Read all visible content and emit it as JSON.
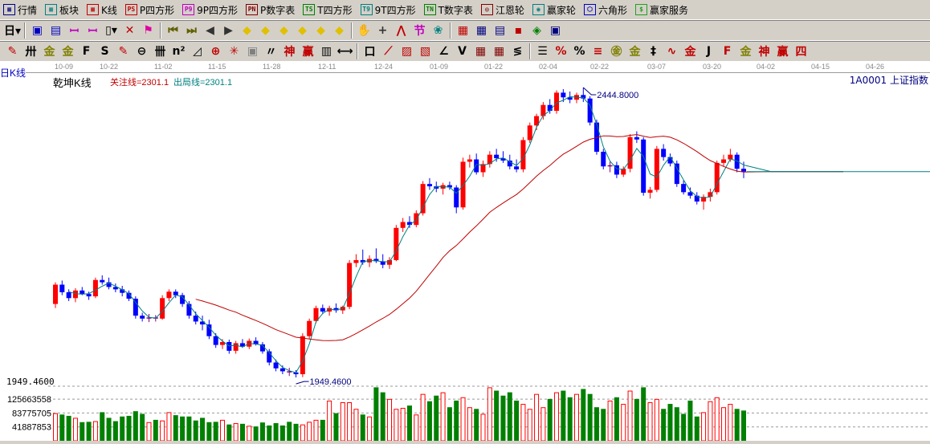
{
  "menu": [
    {
      "icon": "quote-table-icon",
      "label": "行情",
      "color": "#000080"
    },
    {
      "icon": "sector-grid-icon",
      "label": "板块",
      "color": "#008080"
    },
    {
      "icon": "kline-icon",
      "label": "K线",
      "color": "#c00000"
    },
    {
      "icon": "ps-icon",
      "glyph": "PS",
      "label": "P四方形",
      "color": "#c00000"
    },
    {
      "icon": "p9-icon",
      "glyph": "P9",
      "label": "9P四方形",
      "color": "#c000c0"
    },
    {
      "icon": "pn-icon",
      "glyph": "PN",
      "label": "P数字表",
      "color": "#800000"
    },
    {
      "icon": "ts-icon",
      "glyph": "TS",
      "label": "T四方形",
      "color": "#008000"
    },
    {
      "icon": "t9-icon",
      "glyph": "T9",
      "label": "9T四方形",
      "color": "#008080"
    },
    {
      "icon": "tn-icon",
      "glyph": "TN",
      "label": "T数字表",
      "color": "#008000"
    },
    {
      "icon": "gann-wheel-icon",
      "glyph": "◎",
      "label": "江恩轮",
      "color": "#800000"
    },
    {
      "icon": "winner-wheel-icon",
      "glyph": "◉",
      "label": "赢家轮",
      "color": "#008080"
    },
    {
      "icon": "hexagon-icon",
      "glyph": "⬡",
      "label": "六角形",
      "color": "#0000c0"
    },
    {
      "icon": "dollar-icon",
      "glyph": "$",
      "label": "赢家服务",
      "color": "#20a020"
    }
  ],
  "toolbar2": [
    {
      "icon": "period-day-icon",
      "glyph": "日▾",
      "color": "#000"
    },
    {
      "sep": true
    },
    {
      "icon": "window-icon",
      "glyph": "▣",
      "color": "#0000c0"
    },
    {
      "icon": "notes-icon",
      "glyph": "▤",
      "color": "#0000c0"
    },
    {
      "icon": "bars3-icon",
      "glyph": "ꟷ",
      "color": "#c000c0"
    },
    {
      "icon": "bars9-icon",
      "glyph": "ꟷ",
      "color": "#c000c0"
    },
    {
      "icon": "candle-type-icon",
      "glyph": "▯▾",
      "color": "#000"
    },
    {
      "icon": "indicator-icon",
      "glyph": "✕",
      "color": "#c00000"
    },
    {
      "icon": "flag-icon",
      "glyph": "⚑",
      "color": "#e000a0"
    },
    {
      "sep": true
    },
    {
      "icon": "first-icon",
      "glyph": "⏮",
      "color": "#606000"
    },
    {
      "icon": "last-icon",
      "glyph": "⏭",
      "color": "#606000"
    },
    {
      "icon": "prev-icon",
      "glyph": "◀",
      "color": "#333"
    },
    {
      "icon": "next-icon",
      "glyph": "▶",
      "color": "#333"
    },
    {
      "icon": "zoom-left-icon",
      "glyph": "◆",
      "color": "#e0c000"
    },
    {
      "icon": "zoom-right-icon",
      "glyph": "◆",
      "color": "#e0c000"
    },
    {
      "icon": "zoom-h-icon",
      "glyph": "◆",
      "color": "#e0c000"
    },
    {
      "icon": "zoom-in-icon",
      "glyph": "◆",
      "color": "#e0c000"
    },
    {
      "icon": "zoom-out-icon",
      "glyph": "◆",
      "color": "#e0c000"
    },
    {
      "icon": "zoom-v-icon",
      "glyph": "◆",
      "color": "#e0c000"
    },
    {
      "sep": true
    },
    {
      "icon": "hand-icon",
      "glyph": "✋",
      "color": "#333"
    },
    {
      "icon": "crosshair-icon",
      "glyph": "+",
      "color": "#333"
    },
    {
      "icon": "draw-line-icon",
      "glyph": "⋀",
      "color": "#c00000"
    },
    {
      "icon": "festival-icon",
      "glyph": "节",
      "color": "#c000c0"
    },
    {
      "icon": "cycle-icon",
      "glyph": "❀",
      "color": "#008080"
    },
    {
      "sep": true
    },
    {
      "icon": "calendar-icon",
      "glyph": "▦",
      "color": "#c00000"
    },
    {
      "icon": "calculator-icon",
      "glyph": "▦",
      "color": "#000080"
    },
    {
      "icon": "report-icon",
      "glyph": "▤",
      "color": "#000080"
    },
    {
      "icon": "save-icon",
      "glyph": "▪",
      "color": "#c00000"
    },
    {
      "icon": "network-icon",
      "glyph": "◈",
      "color": "#008000"
    },
    {
      "icon": "print-icon",
      "glyph": "▣",
      "color": "#000080"
    }
  ],
  "toolbar3": [
    {
      "icon": "pencil-icon",
      "glyph": "✎",
      "color": "#c00000"
    },
    {
      "icon": "hash-icon",
      "glyph": "卅",
      "color": "#000"
    },
    {
      "icon": "gold-icon",
      "glyph": "金",
      "color": "#808000"
    },
    {
      "icon": "gold2-icon",
      "glyph": "金",
      "color": "#808000"
    },
    {
      "icon": "f-grid-icon",
      "glyph": "F",
      "color": "#000"
    },
    {
      "icon": "spiral-icon",
      "glyph": "S",
      "color": "#000"
    },
    {
      "icon": "pen-ruler-icon",
      "glyph": "✎",
      "color": "#c00000"
    },
    {
      "icon": "circle-ruler-icon",
      "glyph": "⊖",
      "color": "#000"
    },
    {
      "icon": "parallel-icon",
      "glyph": "卌",
      "color": "#000"
    },
    {
      "icon": "n2-icon",
      "glyph": "n²",
      "color": "#000"
    },
    {
      "icon": "triangle-icon",
      "glyph": "◿",
      "color": "#000"
    },
    {
      "icon": "target-icon",
      "glyph": "⊕",
      "color": "#c00000"
    },
    {
      "icon": "star-icon",
      "glyph": "✳",
      "color": "#c00000"
    },
    {
      "icon": "square-target-icon",
      "glyph": "▣",
      "color": "#808080"
    },
    {
      "icon": "quote-icon",
      "glyph": "〃",
      "color": "#000"
    },
    {
      "icon": "shen-icon",
      "glyph": "神",
      "color": "#c00000"
    },
    {
      "icon": "ying-icon",
      "glyph": "赢",
      "color": "#c00000"
    },
    {
      "icon": "ruler-icon",
      "glyph": "▥",
      "color": "#000"
    },
    {
      "icon": "width-icon",
      "glyph": "⟷",
      "color": "#000"
    },
    {
      "sep": true
    },
    {
      "icon": "box-icon",
      "glyph": "口",
      "color": "#000"
    },
    {
      "icon": "fan-icon",
      "glyph": "⟋",
      "color": "#c00000"
    },
    {
      "icon": "grid-fan-icon",
      "glyph": "▨",
      "color": "#c00000"
    },
    {
      "icon": "grid-fan2-icon",
      "glyph": "▧",
      "color": "#c00000"
    },
    {
      "icon": "angle-icon",
      "glyph": "∠",
      "color": "#000"
    },
    {
      "icon": "v-icon",
      "glyph": "V",
      "color": "#000"
    },
    {
      "icon": "grid-icon",
      "glyph": "▦",
      "color": "#800000"
    },
    {
      "icon": "grid2-icon",
      "glyph": "▦",
      "color": "#800000"
    },
    {
      "icon": "lines-icon",
      "glyph": "≶",
      "color": "#000"
    },
    {
      "sep": true
    },
    {
      "icon": "bars-icon",
      "glyph": "☰",
      "color": "#000"
    },
    {
      "icon": "percent-slash-icon",
      "glyph": "%",
      "color": "#c00000"
    },
    {
      "icon": "percent-icon",
      "glyph": "%",
      "color": "#000"
    },
    {
      "icon": "percent-lines-icon",
      "glyph": "≡",
      "color": "#c00000"
    },
    {
      "icon": "gold-circle-icon",
      "glyph": "㊎",
      "color": "#808000"
    },
    {
      "icon": "gold-lines-icon",
      "glyph": "金",
      "color": "#808000"
    },
    {
      "icon": "level-icon",
      "glyph": "‡",
      "color": "#000"
    },
    {
      "icon": "wave-icon",
      "glyph": "∿",
      "color": "#c00000"
    },
    {
      "icon": "gold-line-icon",
      "glyph": "金",
      "color": "#c00000"
    },
    {
      "icon": "j-angle-icon",
      "glyph": "J",
      "color": "#000"
    },
    {
      "icon": "f-angle-icon",
      "glyph": "F",
      "color": "#c00000"
    },
    {
      "icon": "gold-angle-icon",
      "glyph": "金",
      "color": "#808000"
    },
    {
      "icon": "shen-angle-icon",
      "glyph": "神",
      "color": "#c00000"
    },
    {
      "icon": "ying-angle-icon",
      "glyph": "赢",
      "color": "#c00000"
    },
    {
      "icon": "si-angle-icon",
      "glyph": "四",
      "color": "#c00000"
    }
  ],
  "axis_dates": [
    "10-09",
    "10-22",
    "11-02",
    "11-15",
    "11-28",
    "12-11",
    "12-24",
    "01-09",
    "01-22",
    "02-04",
    "02-22",
    "03-07",
    "03-20",
    "04-02",
    "04-15",
    "04-26"
  ],
  "header": {
    "period": "日K线",
    "indicator": "乾坤K线",
    "focus_line": "关注线=2301.1",
    "exit_line": "出局线=2301.1",
    "symbol": "1A0001 上证指数"
  },
  "colors": {
    "up": "#ff0000",
    "down": "#0000ff",
    "doji": "#800080",
    "vol_down": "#008000",
    "ma_short": "#008080",
    "ma_long": "#c00000",
    "focus": "#c00000",
    "exit": "#008080"
  },
  "chart_data": {
    "type": "candlestick",
    "high_label": "2444.8000",
    "low_label": "1949.4600",
    "price_axis_label": "1949.4600",
    "volume_ticks": [
      "125663558",
      "83775705",
      "41887853"
    ],
    "volume_tick_values": [
      125663558,
      83775705,
      41887853
    ],
    "candles_ohlc": [
      [
        2075,
        2112,
        2068,
        2108
      ],
      [
        2108,
        2115,
        2090,
        2095
      ],
      [
        2095,
        2100,
        2080,
        2085
      ],
      [
        2085,
        2102,
        2078,
        2098
      ],
      [
        2098,
        2104,
        2090,
        2092
      ],
      [
        2092,
        2096,
        2082,
        2088
      ],
      [
        2088,
        2120,
        2085,
        2116
      ],
      [
        2116,
        2124,
        2108,
        2112
      ],
      [
        2112,
        2120,
        2100,
        2104
      ],
      [
        2104,
        2110,
        2095,
        2100
      ],
      [
        2100,
        2106,
        2088,
        2094
      ],
      [
        2094,
        2098,
        2080,
        2084
      ],
      [
        2084,
        2088,
        2050,
        2055
      ],
      [
        2055,
        2060,
        2045,
        2050
      ],
      [
        2050,
        2058,
        2044,
        2052
      ],
      [
        2052,
        2056,
        2045,
        2050
      ],
      [
        2050,
        2090,
        2048,
        2085
      ],
      [
        2085,
        2100,
        2080,
        2096
      ],
      [
        2096,
        2100,
        2085,
        2090
      ],
      [
        2090,
        2094,
        2070,
        2075
      ],
      [
        2075,
        2080,
        2050,
        2055
      ],
      [
        2055,
        2062,
        2040,
        2045
      ],
      [
        2045,
        2055,
        2030,
        2040
      ],
      [
        2040,
        2048,
        2015,
        2020
      ],
      [
        2020,
        2025,
        2000,
        2005
      ],
      [
        2005,
        2015,
        1998,
        2010
      ],
      [
        2010,
        2014,
        1990,
        1995
      ],
      [
        1995,
        2012,
        1990,
        2008
      ],
      [
        2008,
        2015,
        2000,
        2002
      ],
      [
        2002,
        2016,
        1998,
        2012
      ],
      [
        2012,
        2018,
        2004,
        2006
      ],
      [
        2006,
        2010,
        1990,
        1994
      ],
      [
        1994,
        1998,
        1970,
        1975
      ],
      [
        1975,
        1980,
        1960,
        1965
      ],
      [
        1965,
        1970,
        1955,
        1960
      ],
      [
        1960,
        1966,
        1952,
        1958
      ],
      [
        1958,
        1962,
        1949.46,
        1955
      ],
      [
        1955,
        2025,
        1950,
        2020
      ],
      [
        2020,
        2050,
        2015,
        2046
      ],
      [
        2046,
        2072,
        2042,
        2068
      ],
      [
        2068,
        2074,
        2058,
        2062
      ],
      [
        2062,
        2072,
        2055,
        2068
      ],
      [
        2068,
        2076,
        2060,
        2064
      ],
      [
        2064,
        2072,
        2058,
        2070
      ],
      [
        2070,
        2150,
        2066,
        2145
      ],
      [
        2145,
        2160,
        2138,
        2150
      ],
      [
        2150,
        2168,
        2142,
        2146
      ],
      [
        2146,
        2158,
        2138,
        2152
      ],
      [
        2152,
        2170,
        2145,
        2148
      ],
      [
        2148,
        2160,
        2136,
        2142
      ],
      [
        2142,
        2155,
        2135,
        2150
      ],
      [
        2150,
        2210,
        2148,
        2205
      ],
      [
        2205,
        2222,
        2198,
        2215
      ],
      [
        2215,
        2225,
        2205,
        2210
      ],
      [
        2210,
        2235,
        2206,
        2230
      ],
      [
        2230,
        2285,
        2226,
        2280
      ],
      [
        2280,
        2290,
        2270,
        2276
      ],
      [
        2276,
        2284,
        2266,
        2272
      ],
      [
        2272,
        2282,
        2262,
        2278
      ],
      [
        2278,
        2284,
        2270,
        2274
      ],
      [
        2274,
        2278,
        2230,
        2240
      ],
      [
        2240,
        2325,
        2236,
        2318
      ],
      [
        2318,
        2330,
        2308,
        2322
      ],
      [
        2322,
        2332,
        2296,
        2300
      ],
      [
        2300,
        2320,
        2292,
        2314
      ],
      [
        2314,
        2336,
        2308,
        2330
      ],
      [
        2330,
        2340,
        2318,
        2324
      ],
      [
        2324,
        2336,
        2316,
        2320
      ],
      [
        2320,
        2330,
        2305,
        2310
      ],
      [
        2310,
        2322,
        2300,
        2305
      ],
      [
        2305,
        2360,
        2300,
        2355
      ],
      [
        2355,
        2385,
        2350,
        2380
      ],
      [
        2380,
        2400,
        2372,
        2396
      ],
      [
        2396,
        2420,
        2390,
        2415
      ],
      [
        2415,
        2425,
        2400,
        2405
      ],
      [
        2405,
        2440,
        2400,
        2436
      ],
      [
        2436,
        2442,
        2420,
        2428
      ],
      [
        2428,
        2438,
        2418,
        2424
      ],
      [
        2424,
        2436,
        2418,
        2432
      ],
      [
        2432,
        2444.8,
        2420,
        2426
      ],
      [
        2426,
        2430,
        2380,
        2385
      ],
      [
        2385,
        2390,
        2330,
        2335
      ],
      [
        2335,
        2340,
        2305,
        2310
      ],
      [
        2310,
        2318,
        2300,
        2312
      ],
      [
        2312,
        2318,
        2290,
        2296
      ],
      [
        2296,
        2310,
        2292,
        2306
      ],
      [
        2306,
        2365,
        2300,
        2360
      ],
      [
        2360,
        2370,
        2350,
        2356
      ],
      [
        2356,
        2360,
        2260,
        2265
      ],
      [
        2265,
        2275,
        2255,
        2270
      ],
      [
        2270,
        2345,
        2266,
        2340
      ],
      [
        2340,
        2348,
        2320,
        2326
      ],
      [
        2326,
        2332,
        2310,
        2315
      ],
      [
        2315,
        2320,
        2275,
        2280
      ],
      [
        2280,
        2286,
        2262,
        2266
      ],
      [
        2266,
        2274,
        2255,
        2260
      ],
      [
        2260,
        2266,
        2245,
        2250
      ],
      [
        2250,
        2262,
        2236,
        2258
      ],
      [
        2258,
        2272,
        2250,
        2266
      ],
      [
        2266,
        2320,
        2262,
        2316
      ],
      [
        2316,
        2330,
        2310,
        2322
      ],
      [
        2322,
        2340,
        2318,
        2330
      ],
      [
        2330,
        2334,
        2300,
        2306
      ],
      [
        2306,
        2318,
        2290,
        2301.1
      ]
    ],
    "volumes": [
      82000000,
      78000000,
      74000000,
      68000000,
      55000000,
      56000000,
      58000000,
      85000000,
      68000000,
      58000000,
      72000000,
      74000000,
      88000000,
      80000000,
      55000000,
      62000000,
      60000000,
      85000000,
      76000000,
      72000000,
      72000000,
      60000000,
      68000000,
      55000000,
      56000000,
      62000000,
      48000000,
      52000000,
      50000000,
      44000000,
      42000000,
      54000000,
      45000000,
      52000000,
      45000000,
      56000000,
      50000000,
      48000000,
      56000000,
      62000000,
      62000000,
      120000000,
      82000000,
      115000000,
      115000000,
      95000000,
      78000000,
      72000000,
      160000000,
      145000000,
      125000000,
      95000000,
      98000000,
      105000000,
      78000000,
      140000000,
      118000000,
      135000000,
      145000000,
      100000000,
      120000000,
      130000000,
      100000000,
      95000000,
      80000000,
      160000000,
      150000000,
      135000000,
      145000000,
      120000000,
      110000000,
      95000000,
      140000000,
      100000000,
      125000000,
      145000000,
      150000000,
      130000000,
      140000000,
      155000000,
      140000000,
      100000000,
      95000000,
      120000000,
      130000000,
      110000000,
      150000000,
      125000000,
      160000000,
      115000000,
      125000000,
      95000000,
      110000000,
      100000000,
      80000000,
      120000000,
      72000000,
      85000000,
      118000000,
      130000000,
      100000000,
      110000000,
      95000000,
      90000000
    ],
    "projection_level": 2301.1
  }
}
